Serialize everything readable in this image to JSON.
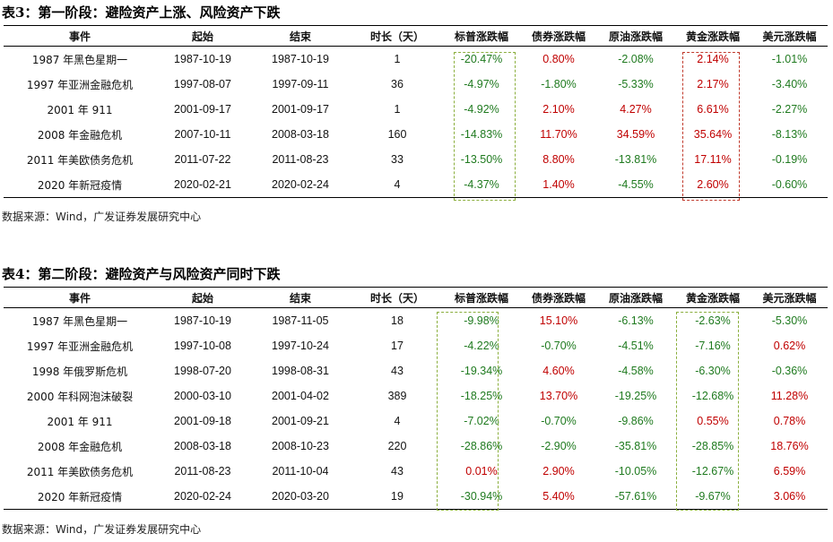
{
  "columns": [
    "事件",
    "起始",
    "结束",
    "时长（天）",
    "标普涨跌幅",
    "债券涨跌幅",
    "原油涨跌幅",
    "黄金涨跌幅",
    "美元涨跌幅"
  ],
  "table1": {
    "title": "表3：第一阶段：避险资产上涨、风险资产下跌",
    "source": "数据来源：Wind，广发证券发展研究中心",
    "rows": [
      {
        "event": "1987 年黑色星期一",
        "start": "1987-10-19",
        "end": "1987-10-19",
        "days": "1",
        "sp": "-20.47%",
        "bond": "0.80%",
        "oil": "-2.08%",
        "gold": "2.14%",
        "usd": "-1.01%"
      },
      {
        "event": "1997 年亚洲金融危机",
        "start": "1997-08-07",
        "end": "1997-09-11",
        "days": "36",
        "sp": "-4.97%",
        "bond": "-1.80%",
        "oil": "-5.33%",
        "gold": "2.17%",
        "usd": "-3.40%"
      },
      {
        "event": "2001 年 911",
        "start": "2001-09-17",
        "end": "2001-09-17",
        "days": "1",
        "sp": "-4.92%",
        "bond": "2.10%",
        "oil": "4.27%",
        "gold": "6.61%",
        "usd": "-2.27%"
      },
      {
        "event": "2008 年金融危机",
        "start": "2007-10-11",
        "end": "2008-03-18",
        "days": "160",
        "sp": "-14.83%",
        "bond": "11.70%",
        "oil": "34.59%",
        "gold": "35.64%",
        "usd": "-8.13%"
      },
      {
        "event": "2011 年美欧债务危机",
        "start": "2011-07-22",
        "end": "2011-08-23",
        "days": "33",
        "sp": "-13.50%",
        "bond": "8.80%",
        "oil": "-13.81%",
        "gold": "17.11%",
        "usd": "-0.19%"
      },
      {
        "event": "2020 年新冠疫情",
        "start": "2020-02-21",
        "end": "2020-02-24",
        "days": "4",
        "sp": "-4.37%",
        "bond": "1.40%",
        "oil": "-4.55%",
        "gold": "2.60%",
        "usd": "-0.60%"
      }
    ]
  },
  "table2": {
    "title": "表4：第二阶段：避险资产与风险资产同时下跌",
    "source": "数据来源：Wind，广发证券发展研究中心",
    "rows": [
      {
        "event": "1987 年黑色星期一",
        "start": "1987-10-19",
        "end": "1987-11-05",
        "days": "18",
        "sp": "-9.98%",
        "bond": "15.10%",
        "oil": "-6.13%",
        "gold": "-2.63%",
        "usd": "-5.30%"
      },
      {
        "event": "1997 年亚洲金融危机",
        "start": "1997-10-08",
        "end": "1997-10-24",
        "days": "17",
        "sp": "-4.22%",
        "bond": "-0.70%",
        "oil": "-4.51%",
        "gold": "-7.16%",
        "usd": "0.62%"
      },
      {
        "event": "1998 年俄罗斯危机",
        "start": "1998-07-20",
        "end": "1998-08-31",
        "days": "43",
        "sp": "-19.34%",
        "bond": "4.60%",
        "oil": "-4.58%",
        "gold": "-6.30%",
        "usd": "-0.36%"
      },
      {
        "event": "2000 年科网泡沫破裂",
        "start": "2000-03-10",
        "end": "2001-04-02",
        "days": "389",
        "sp": "-18.25%",
        "bond": "13.70%",
        "oil": "-19.25%",
        "gold": "-12.68%",
        "usd": "11.28%"
      },
      {
        "event": "2001 年 911",
        "start": "2001-09-18",
        "end": "2001-09-21",
        "days": "4",
        "sp": "-7.02%",
        "bond": "-0.70%",
        "oil": "-9.86%",
        "gold": "0.55%",
        "usd": "0.78%"
      },
      {
        "event": "2008 年金融危机",
        "start": "2008-03-18",
        "end": "2008-10-23",
        "days": "220",
        "sp": "-28.86%",
        "bond": "-2.90%",
        "oil": "-35.81%",
        "gold": "-28.85%",
        "usd": "18.76%"
      },
      {
        "event": "2011 年美欧债务危机",
        "start": "2011-08-23",
        "end": "2011-10-04",
        "days": "43",
        "sp": "0.01%",
        "bond": "2.90%",
        "oil": "-10.05%",
        "gold": "-12.67%",
        "usd": "6.59%"
      },
      {
        "event": "2020 年新冠疫情",
        "start": "2020-02-24",
        "end": "2020-03-20",
        "days": "19",
        "sp": "-30.94%",
        "bond": "5.40%",
        "oil": "-57.61%",
        "gold": "-9.67%",
        "usd": "3.06%"
      }
    ]
  },
  "colors": {
    "positive": "#c00000",
    "negative": "#1f7a1f",
    "highlight_green": "#8aae3c",
    "highlight_red": "#c0392b"
  }
}
